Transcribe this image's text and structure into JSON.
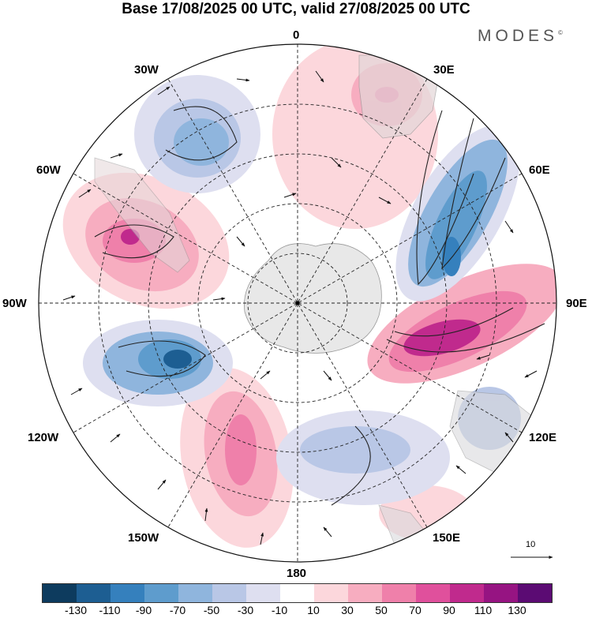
{
  "title": "Base 17/08/2025 00 UTC, valid 27/08/2025 00 UTC",
  "brand": "MODES",
  "brand_mark": "©",
  "longitude_labels": {
    "deg0": "0",
    "e30": "30E",
    "e60": "60E",
    "e90": "90E",
    "e120": "120E",
    "e150": "150E",
    "deg180": "180",
    "w150": "150W",
    "w120": "120W",
    "w90": "90W",
    "w60": "60W",
    "w30": "30W"
  },
  "reference_vector": "10",
  "colorbar": {
    "colors": [
      "#0d3b5e",
      "#1d5e92",
      "#3580bd",
      "#5e9ccd",
      "#8fb5dd",
      "#b9c7e6",
      "#dedff0",
      "#ffffff",
      "#fcd7dc",
      "#f7adc0",
      "#ef80aa",
      "#e0509c",
      "#c02a8d",
      "#961482",
      "#5b0b73"
    ],
    "ticks": [
      "-130",
      "-110",
      "-90",
      "-70",
      "-50",
      "-30",
      "-10",
      "10",
      "30",
      "50",
      "70",
      "90",
      "110",
      "130"
    ]
  }
}
